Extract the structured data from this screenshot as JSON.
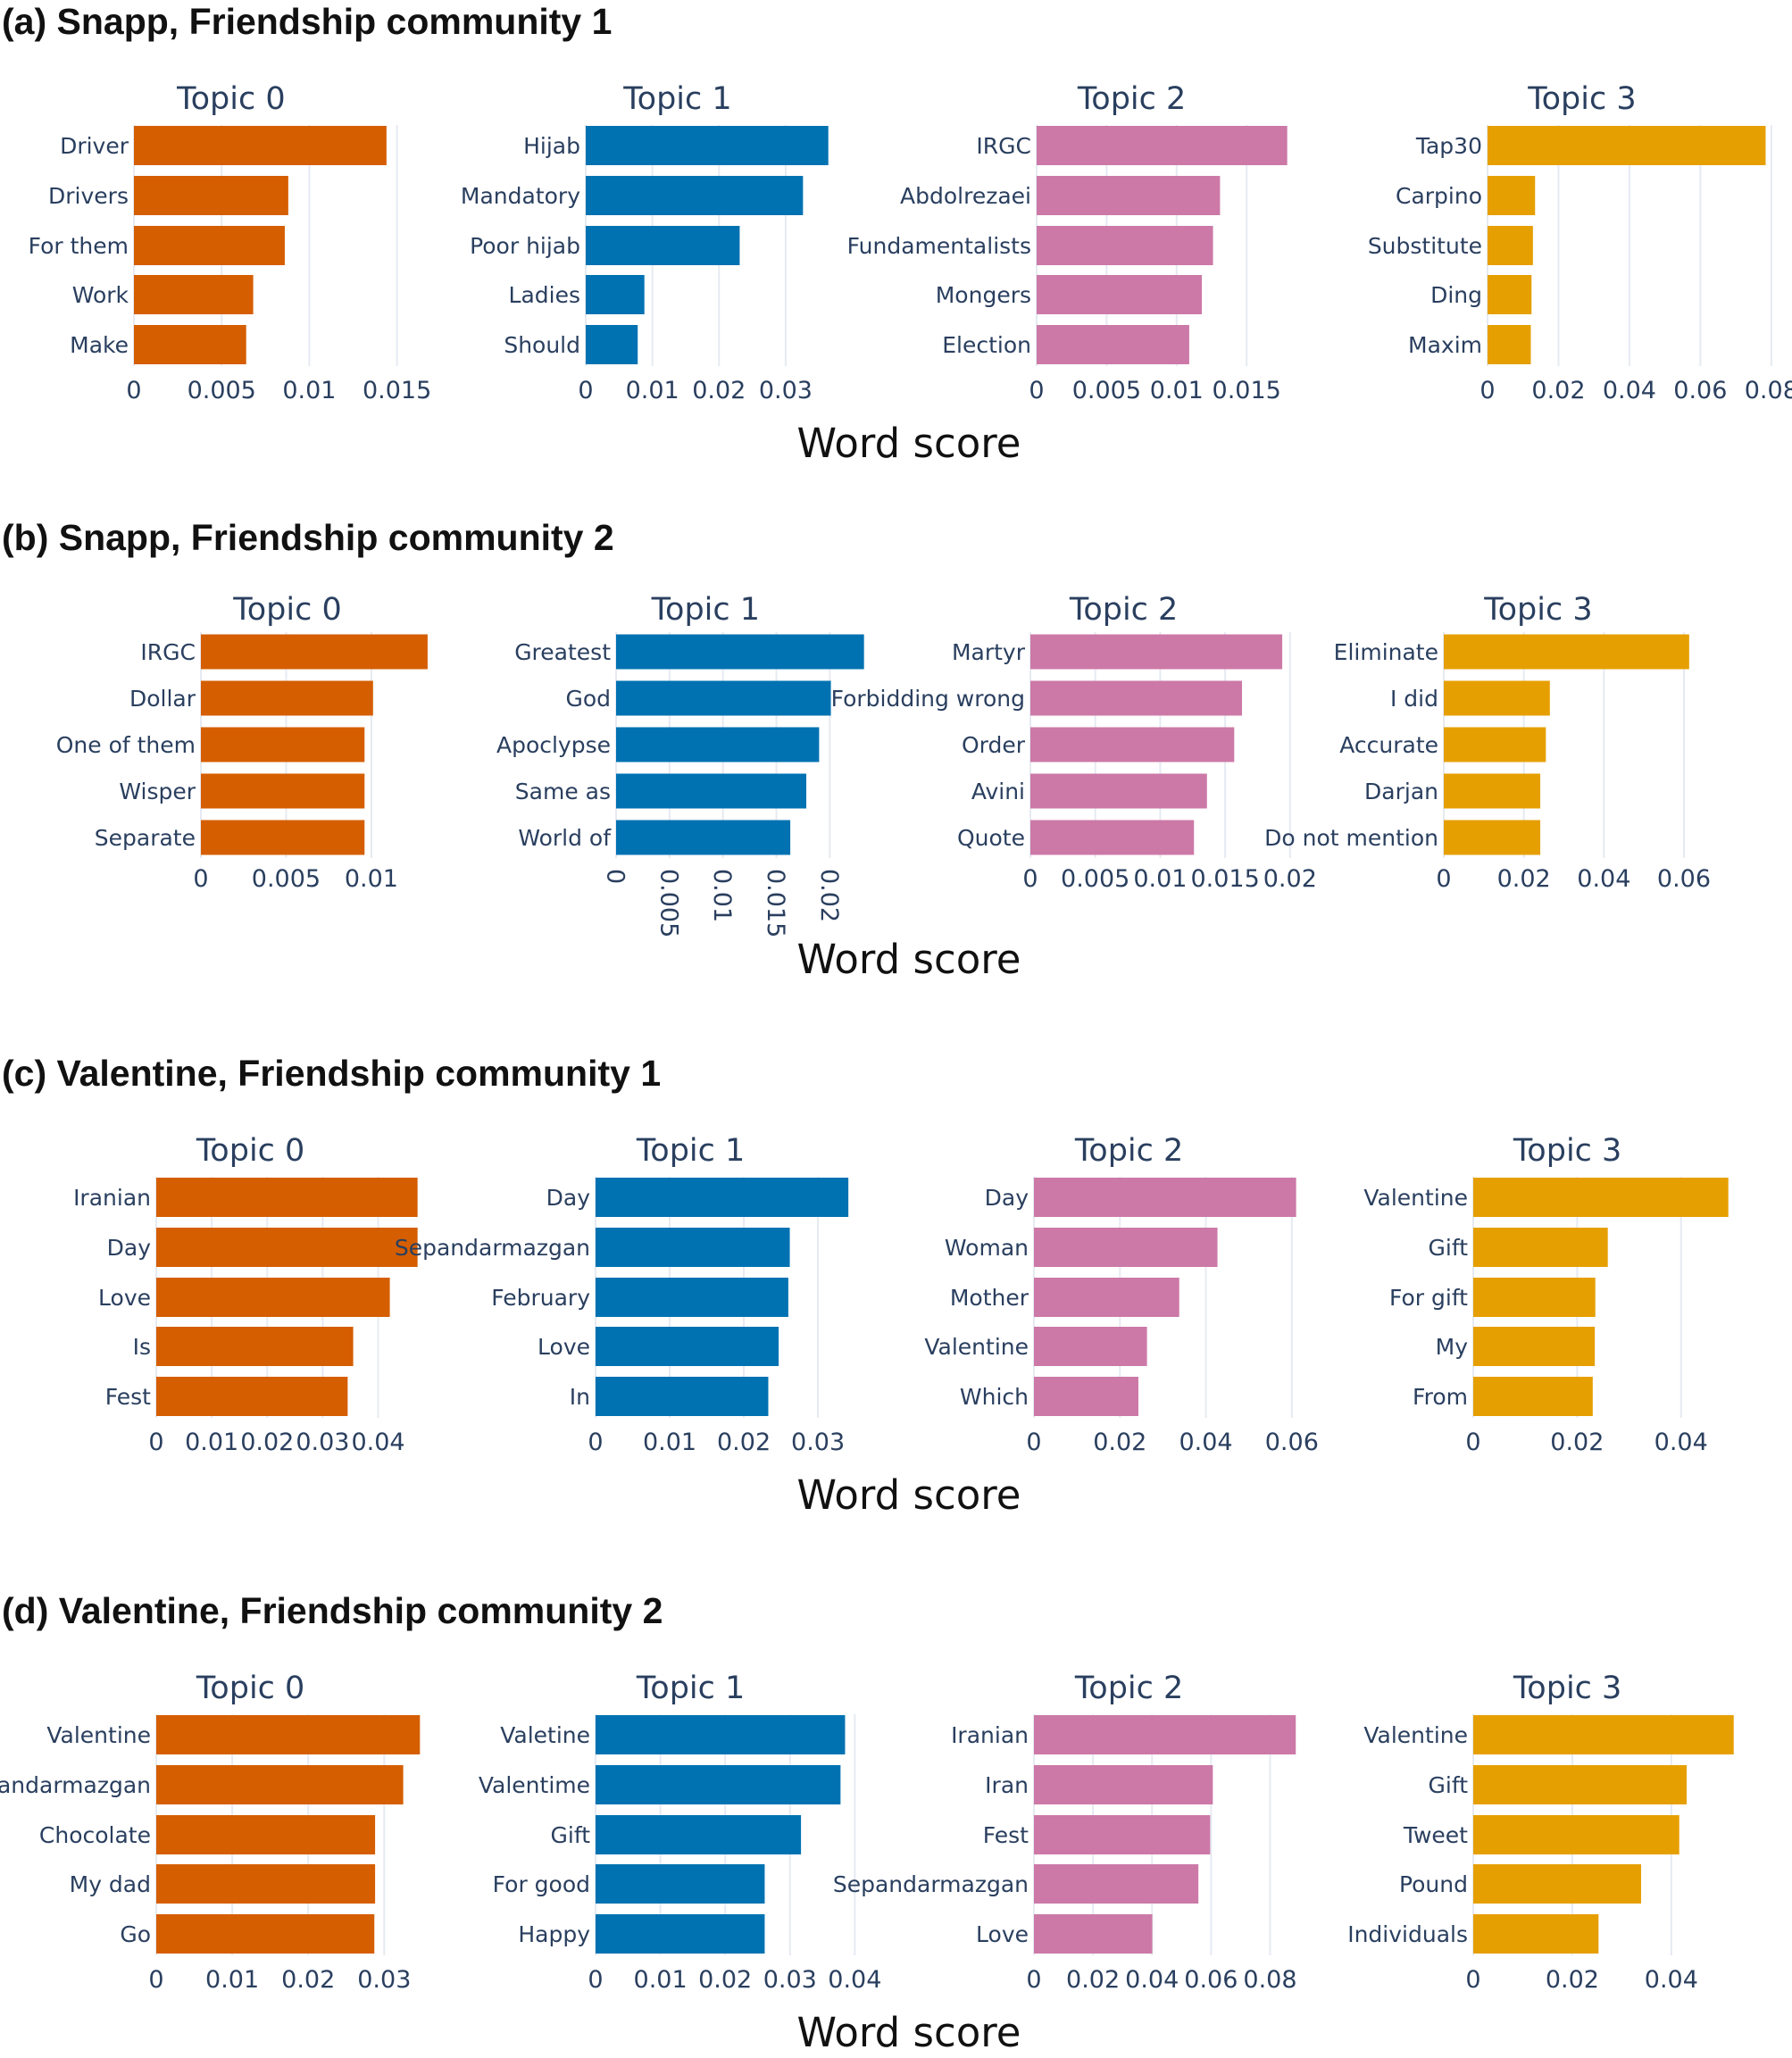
{
  "chart_data": [
    {
      "type": "bar",
      "orientation": "horizontal",
      "title": "(a) Snapp, Friendship community 1",
      "xlabel": "Word score",
      "subplots": [
        {
          "title": "Topic 0",
          "color": "#d55e00",
          "categories": [
            "Driver",
            "Drivers",
            "For them",
            "Work",
            "Make"
          ],
          "values": [
            0.0144,
            0.0088,
            0.0086,
            0.0068,
            0.0064
          ],
          "xlim": [
            0,
            0.0168
          ],
          "ticks": [
            0,
            0.005,
            0.01,
            0.015
          ],
          "tick_labels": [
            "0",
            "0.005",
            "0.01",
            "0.015"
          ]
        },
        {
          "title": "Topic 1",
          "color": "#0072b2",
          "categories": [
            "Hijab",
            "Mandatory",
            "Poor hijab",
            "Ladies",
            "Should"
          ],
          "values": [
            0.0364,
            0.0326,
            0.0231,
            0.0088,
            0.0078
          ],
          "xlim": [
            0,
            0.0418
          ],
          "ticks": [
            0,
            0.01,
            0.02,
            0.03
          ],
          "tick_labels": [
            "0",
            "0.01",
            "0.02",
            "0.03"
          ]
        },
        {
          "title": "Topic 2",
          "color": "#cc79a7",
          "categories": [
            "IRGC",
            "Abdolrezaei",
            "Fundamentalists",
            "Mongers",
            "Election"
          ],
          "values": [
            0.0179,
            0.0131,
            0.0126,
            0.0118,
            0.0109
          ],
          "xlim": [
            0,
            0.0206
          ],
          "ticks": [
            0,
            0.005,
            0.01,
            0.015
          ],
          "tick_labels": [
            "0",
            "0.005",
            "0.01",
            "0.015"
          ]
        },
        {
          "title": "Topic 3",
          "color": "#e69f00",
          "categories": [
            "Tap30",
            "Carpino",
            "Substitute",
            "Ding",
            "Maxim"
          ],
          "values": [
            0.0784,
            0.0134,
            0.0128,
            0.0124,
            0.0122
          ],
          "xlim": [
            0,
            0.0808
          ],
          "ticks": [
            0,
            0.02,
            0.04,
            0.06,
            0.08
          ],
          "tick_labels": [
            "0",
            "0.02",
            "0.04",
            "0.06",
            "0.08"
          ]
        }
      ]
    },
    {
      "type": "bar",
      "orientation": "horizontal",
      "title": "(b) Snapp, Friendship community 2",
      "xlabel": "Word score",
      "subplots": [
        {
          "title": "Topic 0",
          "color": "#d55e00",
          "categories": [
            "IRGC",
            "Dollar",
            "One of them",
            "Wisper",
            "Separate"
          ],
          "values": [
            0.0133,
            0.0101,
            0.0096,
            0.0096,
            0.0096
          ],
          "xlim": [
            0,
            0.0154
          ],
          "ticks": [
            0,
            0.005,
            0.01
          ],
          "tick_labels": [
            "0",
            "0.005",
            "0.01"
          ]
        },
        {
          "title": "Topic 1",
          "color": "#0072b2",
          "categories": [
            "Greatest",
            "God",
            "Apoclypse",
            "Same as",
            "World of"
          ],
          "values": [
            0.0232,
            0.0201,
            0.019,
            0.0178,
            0.0163
          ],
          "xlim": [
            0,
            0.0254
          ],
          "ticks": [
            0,
            0.005,
            0.01,
            0.015,
            0.02
          ],
          "tick_labels": [
            "0",
            "0.005",
            "0.01",
            "0.015",
            "0.02"
          ],
          "rotated_ticks": true
        },
        {
          "title": "Topic 2",
          "color": "#cc79a7",
          "categories": [
            "Martyr",
            "Forbidding wrong",
            "Order",
            "Avini",
            "Quote"
          ],
          "values": [
            0.0194,
            0.0163,
            0.0157,
            0.0136,
            0.0126
          ],
          "xlim": [
            0,
            0.0218
          ],
          "ticks": [
            0,
            0.005,
            0.01,
            0.015,
            0.02
          ],
          "tick_labels": [
            "0",
            "0.005",
            "0.01",
            "0.015",
            "0.02"
          ]
        },
        {
          "title": "Topic 3",
          "color": "#e69f00",
          "categories": [
            "Eliminate",
            "I did",
            "Accurate",
            "Darjan",
            "Do not mention"
          ],
          "values": [
            0.0613,
            0.0265,
            0.0255,
            0.0241,
            0.0241
          ],
          "xlim": [
            0,
            0.0716
          ],
          "ticks": [
            0,
            0.02,
            0.04,
            0.06
          ],
          "tick_labels": [
            "0",
            "0.02",
            "0.04",
            "0.06"
          ]
        }
      ]
    },
    {
      "type": "bar",
      "orientation": "horizontal",
      "title": "(c) Valentine, Friendship community 1",
      "xlabel": "Word score",
      "subplots": [
        {
          "title": "Topic 0",
          "color": "#d55e00",
          "categories": [
            "Iranian",
            "Day",
            "Love",
            "Is",
            "Fest"
          ],
          "values": [
            0.0471,
            0.0471,
            0.0421,
            0.0355,
            0.0345
          ],
          "xlim": [
            0,
            0.0515
          ],
          "ticks": [
            0,
            0.01,
            0.02,
            0.03,
            0.04
          ],
          "tick_labels": [
            "0",
            "0.01",
            "0.02",
            "0.03",
            "0.04"
          ]
        },
        {
          "title": "Topic 1",
          "color": "#0072b2",
          "categories": [
            "Day",
            "Sepandarmazgan",
            "February",
            "Love",
            "In"
          ],
          "values": [
            0.0341,
            0.0262,
            0.026,
            0.0247,
            0.0233
          ],
          "xlim": [
            0,
            0.0389
          ],
          "ticks": [
            0,
            0.01,
            0.02,
            0.03
          ],
          "tick_labels": [
            "0",
            "0.01",
            "0.02",
            "0.03"
          ]
        },
        {
          "title": "Topic 2",
          "color": "#cc79a7",
          "categories": [
            "Day",
            "Woman",
            "Mother",
            "Valentine",
            "Which"
          ],
          "values": [
            0.061,
            0.0427,
            0.0338,
            0.0263,
            0.0243
          ],
          "xlim": [
            0,
            0.0671
          ],
          "ticks": [
            0,
            0.02,
            0.04,
            0.06
          ],
          "tick_labels": [
            "0",
            "0.02",
            "0.04",
            "0.06"
          ]
        },
        {
          "title": "Topic 3",
          "color": "#e69f00",
          "categories": [
            "Valentine",
            "Gift",
            "For gift",
            "My",
            "From"
          ],
          "values": [
            0.0491,
            0.0259,
            0.0235,
            0.0234,
            0.023
          ],
          "xlim": [
            0,
            0.055
          ],
          "ticks": [
            0,
            0.02,
            0.04
          ],
          "tick_labels": [
            "0",
            "0.02",
            "0.04"
          ]
        }
      ]
    },
    {
      "type": "bar",
      "orientation": "horizontal",
      "title": "(d) Valentine, Friendship community 2",
      "xlabel": "Word score",
      "subplots": [
        {
          "title": "Topic 0",
          "color": "#d55e00",
          "categories": [
            "Valentine",
            "Sepandarmazgan",
            "Chocolate",
            "My dad",
            "Go"
          ],
          "values": [
            0.0347,
            0.0325,
            0.0288,
            0.0288,
            0.0287
          ],
          "xlim": [
            0,
            0.0376
          ],
          "ticks": [
            0,
            0.01,
            0.02,
            0.03
          ],
          "tick_labels": [
            "0",
            "0.01",
            "0.02",
            "0.03"
          ]
        },
        {
          "title": "Topic 1",
          "color": "#0072b2",
          "categories": [
            "Valetine",
            "Valentime",
            "Gift",
            "For good",
            "Happy"
          ],
          "values": [
            0.0385,
            0.0378,
            0.0317,
            0.0261,
            0.0261
          ],
          "xlim": [
            0,
            0.0445
          ],
          "ticks": [
            0,
            0.01,
            0.02,
            0.03,
            0.04
          ],
          "tick_labels": [
            "0",
            "0.01",
            "0.02",
            "0.03",
            "0.04"
          ]
        },
        {
          "title": "Topic 2",
          "color": "#cc79a7",
          "categories": [
            "Iranian",
            "Iran",
            "Fest",
            "Sepandarmazgan",
            "Love"
          ],
          "values": [
            0.0887,
            0.0606,
            0.0597,
            0.0557,
            0.0401
          ],
          "xlim": [
            0,
            0.0977
          ],
          "ticks": [
            0,
            0.02,
            0.04,
            0.06,
            0.08
          ],
          "tick_labels": [
            "0",
            "0.02",
            "0.04",
            "0.06",
            "0.08"
          ]
        },
        {
          "title": "Topic 3",
          "color": "#e69f00",
          "categories": [
            "Valentine",
            "Gift",
            "Tweet",
            "Pound",
            "Individuals"
          ],
          "values": [
            0.0526,
            0.0431,
            0.0416,
            0.0339,
            0.0253
          ],
          "xlim": [
            0,
            0.0577
          ],
          "ticks": [
            0,
            0.02,
            0.04
          ],
          "tick_labels": [
            "0",
            "0.02",
            "0.04"
          ]
        }
      ]
    }
  ]
}
